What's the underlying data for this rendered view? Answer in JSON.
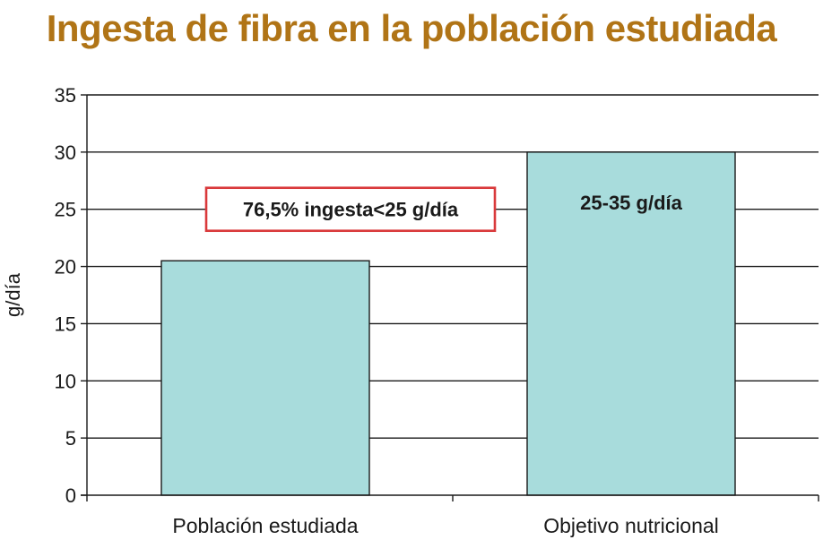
{
  "colors": {
    "title": "#b07416",
    "bar_fill": "#a8dcdc",
    "bar_stroke": "#1a1a1a",
    "gridline": "#1a1a1a",
    "annotation_border": "#d9393b"
  },
  "chart_data": {
    "type": "bar",
    "title": "Ingesta de fibra en la población estudiada",
    "xlabel": "",
    "ylabel": "g/día",
    "ylim": [
      0,
      35
    ],
    "yticks": [
      0,
      5,
      10,
      15,
      20,
      25,
      30,
      35
    ],
    "grid": true,
    "categories": [
      "Población estudiada",
      "Objetivo nutricional"
    ],
    "values": [
      20.5,
      30
    ],
    "bar_labels": [
      "",
      "25-35 g/día"
    ],
    "annotations": [
      {
        "text": "76,5% ingesta<25 g/día",
        "category": "Población estudiada",
        "y": 25,
        "boxed": true
      }
    ]
  }
}
